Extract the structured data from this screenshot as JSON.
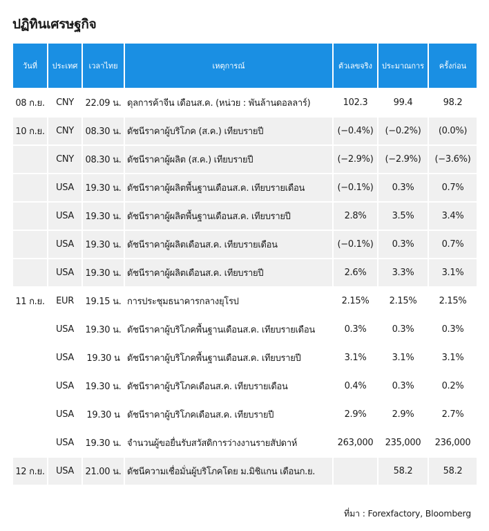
{
  "title": "ปฏิทินเศรษฐกิจ",
  "headers": [
    "วันที่",
    "ประเทศ",
    "เวลาไทย",
    "เหตุการณ์",
    "ตัวเลขจริง",
    "ประมาณการ",
    "ครั้งก่อน"
  ],
  "rows": [
    {
      "date": "08 ก.ย.",
      "country": "CNY",
      "time": "22.09 น.",
      "event": "ดุลการค้าจีน เดือนส.ค. (หน่วย : พันล้านดอลลาร์)",
      "actual": "102.3",
      "forecast": "99.4",
      "previous": "98.2"
    },
    {
      "date": "10 ก.ย.",
      "country": "CNY",
      "time": "08.30 น.",
      "event": "ดัชนีราคาผู้บริโภค (ส.ค.) เทียบรายปี",
      "actual": "(−0.4%)",
      "forecast": "(−0.2%)",
      "previous": "(0.0%)"
    },
    {
      "date": "",
      "country": "CNY",
      "time": "08.30 น.",
      "event": "ดัชนีราคาผู้ผลิต (ส.ค.) เทียบรายปี",
      "actual": "(−2.9%)",
      "forecast": "(−2.9%)",
      "previous": "(−3.6%)"
    },
    {
      "date": "",
      "country": "USA",
      "time": "19.30 น.",
      "event": "ดัชนีราคาผู้ผลิตพื้นฐานเดือนส.ค. เทียบรายเดือน",
      "actual": "(−0.1%)",
      "forecast": "0.3%",
      "previous": "0.7%"
    },
    {
      "date": "",
      "country": "USA",
      "time": "19.30 น.",
      "event": "ดัชนีราคาผู้ผลิตพื้นฐานเดือนส.ค. เทียบรายปี",
      "actual": "2.8%",
      "forecast": "3.5%",
      "previous": "3.4%"
    },
    {
      "date": "",
      "country": "USA",
      "time": "19.30 น.",
      "event": "ดัชนีราคาผู้ผลิตเดือนส.ค. เทียบรายเดือน",
      "actual": "(−0.1%)",
      "forecast": "0.3%",
      "previous": "0.7%"
    },
    {
      "date": "",
      "country": "USA",
      "time": "19.30 น.",
      "event": "ดัชนีราคาผู้ผลิตเดือนส.ค. เทียบรายปี",
      "actual": "2.6%",
      "forecast": "3.3%",
      "previous": "3.1%"
    },
    {
      "date": "11 ก.ย.",
      "country": "EUR",
      "time": "19.15 น.",
      "event": "การประชุมธนาคารกลางยุโรป",
      "actual": "2.15%",
      "forecast": "2.15%",
      "previous": "2.15%"
    },
    {
      "date": "",
      "country": "USA",
      "time": "19.30 น.",
      "event": "ดัชนีราคาผู้บริโภคพื้นฐานเดือนส.ค. เทียบรายเดือน",
      "actual": "0.3%",
      "forecast": "0.3%",
      "previous": "0.3%"
    },
    {
      "date": "",
      "country": "USA",
      "time": "19.30 น",
      "event": "ดัชนีราคาผู้บริโภคพื้นฐานเดือนส.ค. เทียบรายปี",
      "actual": "3.1%",
      "forecast": "3.1%",
      "previous": "3.1%"
    },
    {
      "date": "",
      "country": "USA",
      "time": "19.30 น.",
      "event": "ดัชนีราคาผู้บริโภคเดือนส.ค. เทียบรายเดือน",
      "actual": "0.4%",
      "forecast": "0.3%",
      "previous": "0.2%"
    },
    {
      "date": "",
      "country": "USA",
      "time": "19.30 น",
      "event": "ดัชนีราคาผู้บริโภคเดือนส.ค. เทียบรายปี",
      "actual": "2.9%",
      "forecast": "2.9%",
      "previous": "2.7%"
    },
    {
      "date": "",
      "country": "USA",
      "time": "19.30 น.",
      "event": "จำนวนผู้ขอยื่นรับสวัสดิการว่างงานรายสัปดาห์",
      "actual": "263,000",
      "forecast": "235,000",
      "previous": "236,000"
    },
    {
      "date": "12 ก.ย.",
      "country": "USA",
      "time": "21.00 น.",
      "event": "ดัชนีความเชื่อมั่นผู้บริโภคโดย ม.มิชิแกน เดือนก.ย.",
      "actual": "",
      "forecast": "58.2",
      "previous": "58.2"
    }
  ],
  "source": "ที่มา : Forexfactory, Bloomberg",
  "colors": {
    "header": "#1a8fe3",
    "shade": "#f0f0f0"
  }
}
